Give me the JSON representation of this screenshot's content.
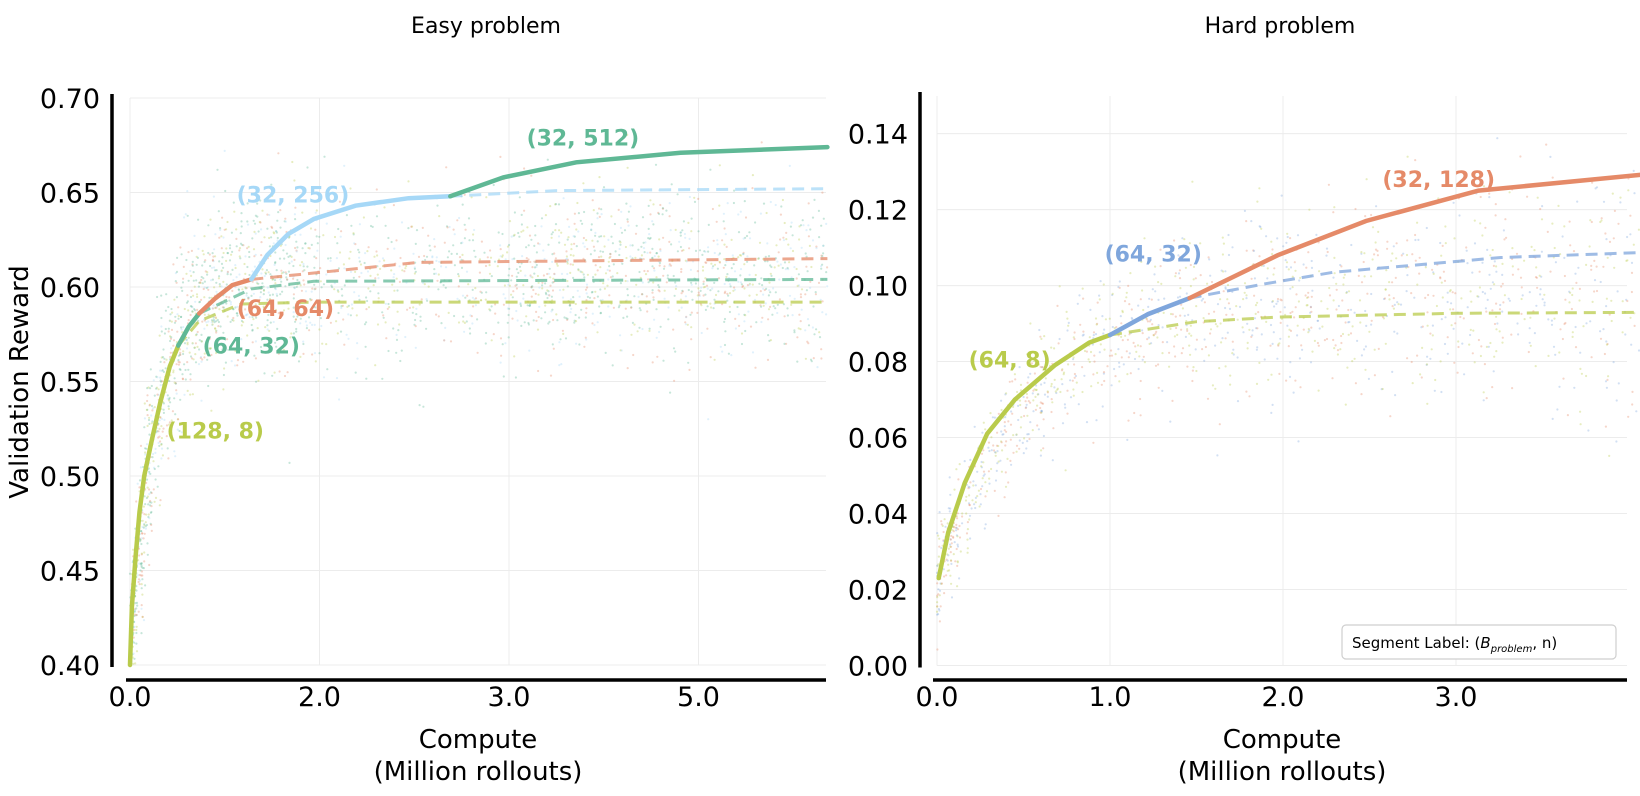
{
  "legend": {
    "prefix": "Segment Label: (",
    "b": "B",
    "sub": "problem",
    "suffix": ", n)"
  },
  "chart_data": [
    {
      "type": "line",
      "title": "Easy problem",
      "xlabel": [
        "Compute",
        "(Million rollouts)"
      ],
      "ylabel": "Validation Reward",
      "xticks": [
        "0.0",
        "2.0",
        "3.0",
        "5.0"
      ],
      "xtick_values": [
        0,
        2,
        3,
        5
      ],
      "yticks": [
        "0.40",
        "0.45",
        "0.50",
        "0.55",
        "0.60",
        "0.65",
        "0.70"
      ],
      "ytick_values": [
        0.4,
        0.45,
        0.5,
        0.55,
        0.6,
        0.65,
        0.7
      ],
      "xlim": [
        0,
        6.36
      ],
      "ylim": [
        0.4,
        0.7
      ],
      "grid": true,
      "scatter_background": true,
      "segments": [
        {
          "label": "(128, 8)",
          "color": "#b9cb4b",
          "solid": [
            [
              0,
              0.4
            ],
            [
              0.02,
              0.431
            ],
            [
              0.06,
              0.458
            ],
            [
              0.1,
              0.481
            ],
            [
              0.15,
              0.5
            ],
            [
              0.23,
              0.519
            ],
            [
              0.32,
              0.539
            ],
            [
              0.42,
              0.558
            ],
            [
              0.51,
              0.569
            ]
          ],
          "dashed": [
            [
              0.51,
              0.569
            ],
            [
              0.73,
              0.582
            ],
            [
              1.17,
              0.591
            ],
            [
              1.94,
              0.592
            ],
            [
              6.36,
              0.592
            ]
          ],
          "label_at": [
            0.9,
            0.524
          ]
        },
        {
          "label": "(64, 32)",
          "color": "#5fb895",
          "solid": [
            [
              0.51,
              0.569
            ],
            [
              0.62,
              0.579
            ],
            [
              0.73,
              0.586
            ]
          ],
          "dashed": [
            [
              0.73,
              0.586
            ],
            [
              1.28,
              0.599
            ],
            [
              1.94,
              0.603
            ],
            [
              6.36,
              0.604
            ]
          ],
          "label_at": [
            1.28,
            0.569
          ]
        },
        {
          "label": "(64, 64)",
          "color": "#e58a68",
          "solid": [
            [
              0.73,
              0.586
            ],
            [
              0.9,
              0.594
            ],
            [
              1.08,
              0.601
            ],
            [
              1.28,
              0.604
            ]
          ],
          "dashed": [
            [
              1.28,
              0.604
            ],
            [
              2.52,
              0.613
            ],
            [
              6.36,
              0.615
            ]
          ],
          "label_at": [
            1.64,
            0.589
          ]
        },
        {
          "label": "(32, 256)",
          "color": "#a6d8f7",
          "solid": [
            [
              1.28,
              0.604
            ],
            [
              1.45,
              0.617
            ],
            [
              1.67,
              0.628
            ],
            [
              1.94,
              0.636
            ],
            [
              2.19,
              0.643
            ],
            [
              2.47,
              0.647
            ],
            [
              2.69,
              0.648
            ]
          ],
          "dashed": [
            [
              2.69,
              0.648
            ],
            [
              3.5,
              0.651
            ],
            [
              6.36,
              0.652
            ]
          ],
          "label_at": [
            1.72,
            0.649
          ]
        },
        {
          "label": "(32, 512)",
          "color": "#5fb895",
          "solid": [
            [
              2.69,
              0.648
            ],
            [
              2.97,
              0.658
            ],
            [
              3.71,
              0.666
            ],
            [
              4.81,
              0.671
            ],
            [
              6.36,
              0.674
            ]
          ],
          "dashed": [],
          "label_at": [
            3.78,
            0.679
          ]
        }
      ]
    },
    {
      "type": "line",
      "title": "Hard problem",
      "xlabel": [
        "Compute",
        "(Million rollouts)"
      ],
      "ylabel": "",
      "xticks": [
        "0.0",
        "1.0",
        "2.0",
        "3.0"
      ],
      "xtick_values": [
        0,
        1,
        2,
        3
      ],
      "yticks": [
        "0.00",
        "0.02",
        "0.04",
        "0.06",
        "0.08",
        "0.10",
        "0.12",
        "0.14"
      ],
      "ytick_values": [
        0,
        0.02,
        0.04,
        0.06,
        0.08,
        0.1,
        0.12,
        0.14
      ],
      "xlim": [
        0,
        4.26
      ],
      "ylim": [
        0,
        0.15
      ],
      "grid": true,
      "scatter_background": true,
      "segments": [
        {
          "label": "(64, 8)",
          "color": "#b9cb4b",
          "solid": [
            [
              0.01,
              0.023
            ],
            [
              0.065,
              0.035
            ],
            [
              0.16,
              0.048
            ],
            [
              0.29,
              0.061
            ],
            [
              0.45,
              0.07
            ],
            [
              0.68,
              0.079
            ],
            [
              0.88,
              0.085
            ],
            [
              1.0,
              0.087
            ]
          ],
          "dashed": [
            [
              1.0,
              0.087
            ],
            [
              1.5,
              0.0905
            ],
            [
              1.97,
              0.0917
            ],
            [
              3.0,
              0.0927
            ],
            [
              4.26,
              0.093
            ]
          ],
          "label_at": [
            0.42,
            0.0806
          ]
        },
        {
          "label": "(64, 32)",
          "color": "#7fa6dc",
          "solid": [
            [
              1.0,
              0.087
            ],
            [
              1.22,
              0.0925
            ],
            [
              1.46,
              0.0967
            ]
          ],
          "dashed": [
            [
              1.46,
              0.0967
            ],
            [
              1.9,
              0.1005
            ],
            [
              2.29,
              0.1035
            ],
            [
              3.26,
              0.1074
            ],
            [
              4.26,
              0.109
            ]
          ],
          "label_at": [
            1.25,
            0.1085
          ]
        },
        {
          "label": "(32, 128)",
          "color": "#e58a68",
          "solid": [
            [
              1.46,
              0.0967
            ],
            [
              1.97,
              0.108
            ],
            [
              2.48,
              0.117
            ],
            [
              3.13,
              0.125
            ],
            [
              4.26,
              0.13
            ]
          ],
          "dashed": [],
          "label_at": [
            2.9,
            0.128
          ]
        }
      ]
    }
  ]
}
